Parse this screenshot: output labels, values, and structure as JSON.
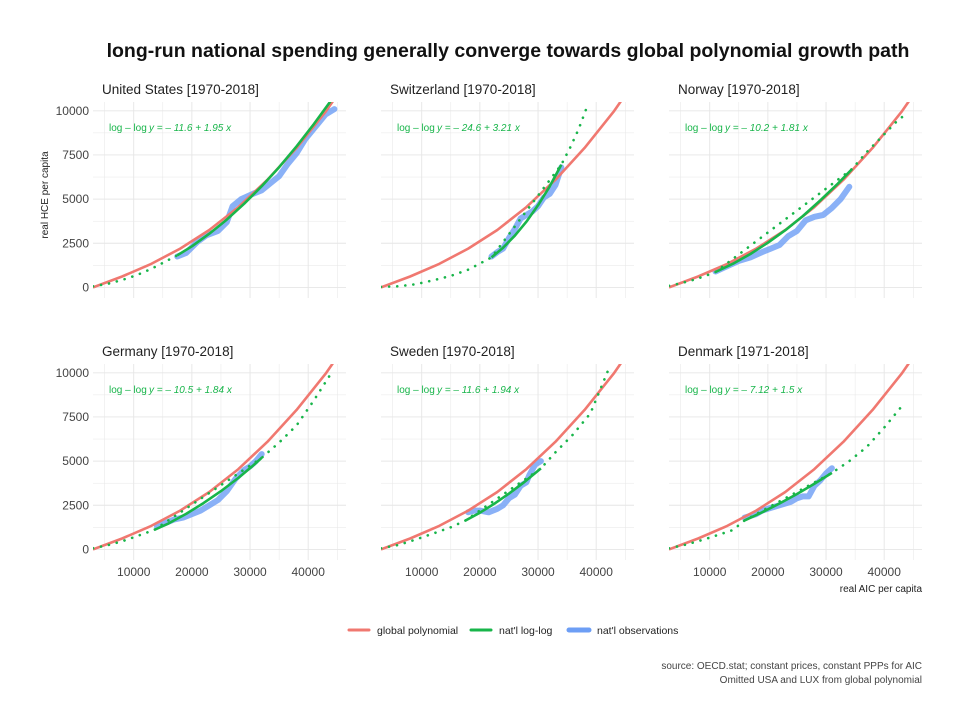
{
  "chart_data": {
    "type": "line",
    "title": "long-run national spending generally converge towards global polynomial growth path",
    "xlabel": "real AIC per capita",
    "ylabel": "real HCE per capita",
    "xlim": [
      3000,
      46500
    ],
    "ylim": [
      -600,
      10500
    ],
    "x_ticks": [
      10000,
      20000,
      30000,
      40000
    ],
    "x_tick_labels": [
      "10000",
      "20000",
      "30000",
      "40000"
    ],
    "y_ticks": [
      0,
      2500,
      5000,
      7500,
      10000
    ],
    "y_tick_labels": [
      "0",
      "2500",
      "5000",
      "7500",
      "10000"
    ],
    "grid": true,
    "legend": {
      "position": "bottom",
      "items": [
        {
          "label": "global polynomial",
          "color": "#f07870"
        },
        {
          "label": "nat'l log-log",
          "color": "#18b54a"
        },
        {
          "label": "nat'l observations",
          "color": "#6d9ef5"
        }
      ]
    },
    "colors": {
      "global": "#f07870",
      "loglog": "#18b54a",
      "obs": "#6d9ef5"
    },
    "global_polynomial": {
      "x": [
        3000,
        8000,
        13000,
        18000,
        23000,
        28000,
        33000,
        38000,
        43000,
        45000
      ],
      "y": [
        0,
        620,
        1330,
        2200,
        3250,
        4550,
        6100,
        7900,
        9950,
        10900
      ]
    },
    "source_lines": [
      "source: OECD.stat; constant prices, constant PPPs for AIC",
      "Omitted USA and LUX from global polynomial"
    ],
    "panels": [
      {
        "title": "United States [1970-2018]",
        "annotation_label": "log – log",
        "annotation_eq": "y = – 11.6 + 1.95 x",
        "loglog_obs": {
          "x": [
            17500,
            20000,
            23000,
            26000,
            29000,
            32000,
            35000,
            38000,
            41000,
            44000
          ],
          "y": [
            1820,
            2330,
            3040,
            3840,
            4740,
            5730,
            6810,
            7990,
            9260,
            10620
          ]
        },
        "loglog_ext": {
          "x": [
            3000,
            5500,
            8000,
            10500,
            13000,
            15500,
            17500
          ],
          "y": [
            60,
            200,
            420,
            690,
            1050,
            1470,
            1820
          ]
        },
        "observations": {
          "x": [
            17500,
            19000,
            21000,
            22500,
            24500,
            26000,
            27000,
            28500,
            30500,
            32000,
            33500,
            35000,
            36500,
            38000,
            39500,
            41000,
            43000,
            44500
          ],
          "y": [
            1750,
            1950,
            2600,
            2950,
            3200,
            3700,
            4600,
            5000,
            5300,
            5500,
            5900,
            6300,
            7000,
            7600,
            8400,
            9000,
            9800,
            10100
          ]
        }
      },
      {
        "title": "Switzerland [1970-2018]",
        "annotation_label": "log – log",
        "annotation_eq": "y = – 24.6 + 3.21 x",
        "loglog_obs": {
          "x": [
            22000,
            24000,
            26000,
            28000,
            30000,
            32000,
            34000
          ],
          "y": [
            1700,
            2250,
            2930,
            3720,
            4650,
            5720,
            6950
          ]
        },
        "loglog_ext": {
          "x": [
            3000,
            6000,
            9000,
            12000,
            15000,
            18000,
            22000,
            34000,
            35500,
            37000,
            38500
          ],
          "y": [
            30,
            60,
            180,
            400,
            650,
            1000,
            1700,
            6950,
            7900,
            8970,
            10300
          ]
        },
        "observations": {
          "x": [
            22000,
            23000,
            24000,
            25000,
            26000,
            27000,
            28000,
            29000,
            30000,
            31000,
            32000,
            33000,
            34000
          ],
          "y": [
            1750,
            2000,
            2200,
            2800,
            3300,
            3900,
            4100,
            4300,
            4600,
            5100,
            5300,
            5800,
            6800
          ]
        }
      },
      {
        "title": "Norway [1970-2018]",
        "annotation_label": "log – log",
        "annotation_eq": "y = – 10.2 + 1.81 x",
        "loglog_obs": {
          "x": [
            11000,
            14000,
            17000,
            20000,
            23000,
            26000,
            29000,
            32000,
            34500
          ],
          "y": [
            870,
            1340,
            1890,
            2530,
            3240,
            4040,
            4920,
            5870,
            6710
          ]
        },
        "loglog_ext": {
          "x": [
            3000,
            5000,
            7000,
            9000,
            11000,
            34500,
            37000,
            39500,
            42000,
            44000
          ],
          "y": [
            90,
            230,
            410,
            620,
            870,
            6710,
            7660,
            8500,
            9350,
            9900
          ]
        },
        "observations": {
          "x": [
            11000,
            13000,
            15000,
            17000,
            19000,
            20500,
            22000,
            23500,
            25000,
            26500,
            28000,
            29500,
            31000,
            32500,
            34000
          ],
          "y": [
            900,
            1200,
            1500,
            1700,
            2000,
            2200,
            2400,
            2900,
            3200,
            3800,
            4000,
            4100,
            4500,
            5000,
            5700
          ]
        }
      },
      {
        "title": "Germany [1970-2018]",
        "annotation_label": "log – log",
        "annotation_eq": "y = – 10.5 + 1.84 x",
        "loglog_obs": {
          "x": [
            13500,
            16000,
            19000,
            22000,
            25000,
            28000,
            30500,
            32000
          ],
          "y": [
            1100,
            1470,
            2010,
            2620,
            3300,
            4050,
            4740,
            5190
          ]
        },
        "loglog_ext": {
          "x": [
            3000,
            5500,
            8000,
            10500,
            13500,
            32000,
            35000,
            38000,
            41000,
            44000
          ],
          "y": [
            70,
            230,
            460,
            740,
            1100,
            5190,
            6050,
            7020,
            8450,
            10000
          ]
        },
        "observations": {
          "x": [
            14000,
            15500,
            17000,
            18500,
            20000,
            21500,
            23000,
            24500,
            26000,
            27500,
            29000,
            30000,
            31000,
            32000
          ],
          "y": [
            1300,
            1500,
            1700,
            1800,
            2000,
            2200,
            2500,
            2800,
            3300,
            4000,
            4500,
            4700,
            5000,
            5400
          ]
        }
      },
      {
        "title": "Sweden [1970-2018]",
        "annotation_label": "log – log",
        "annotation_eq": "y = – 11.6 + 1.94 x",
        "loglog_obs": {
          "x": [
            17500,
            20000,
            22500,
            25000,
            27500,
            30500
          ],
          "y": [
            1630,
            2080,
            2590,
            3160,
            3780,
            4590
          ]
        },
        "loglog_ext": {
          "x": [
            3000,
            6000,
            9000,
            12000,
            15000,
            17500,
            30500,
            33000,
            36000,
            39000,
            42000
          ],
          "y": [
            60,
            250,
            560,
            900,
            1250,
            1630,
            4590,
            5500,
            6500,
            7700,
            10100
          ]
        },
        "observations": {
          "x": [
            18000,
            19000,
            20000,
            21500,
            23000,
            24000,
            25000,
            26000,
            27000,
            28000,
            28500,
            29000,
            29500,
            30500
          ],
          "y": [
            2100,
            2200,
            2200,
            2100,
            2300,
            2500,
            2900,
            3100,
            3600,
            3800,
            4200,
            4500,
            4800,
            5000
          ]
        }
      },
      {
        "title": "Denmark [1971-2018]",
        "annotation_label": "log – log",
        "annotation_eq": "y = – 7.12 + 1.5 x",
        "loglog_obs": {
          "x": [
            16000,
            19000,
            22000,
            25000,
            28000,
            31000
          ],
          "y": [
            1640,
            2100,
            2600,
            3140,
            3720,
            4330
          ]
        },
        "loglog_ext": {
          "x": [
            3000,
            6000,
            9000,
            12000,
            14000,
            16000,
            31000,
            34000,
            37000,
            40000,
            43500
          ],
          "y": [
            60,
            280,
            560,
            880,
            1100,
            1640,
            4330,
            5000,
            5800,
            6900,
            8300
          ]
        },
        "observations": {
          "x": [
            16000,
            17000,
            18000,
            19000,
            20000,
            21000,
            22000,
            23000,
            24000,
            25000,
            26000,
            27000,
            28000,
            29000,
            30000,
            31000
          ],
          "y": [
            1800,
            1900,
            2000,
            2200,
            2300,
            2400,
            2500,
            2600,
            2700,
            2900,
            3000,
            3000,
            3600,
            3900,
            4300,
            4600
          ]
        }
      }
    ]
  }
}
